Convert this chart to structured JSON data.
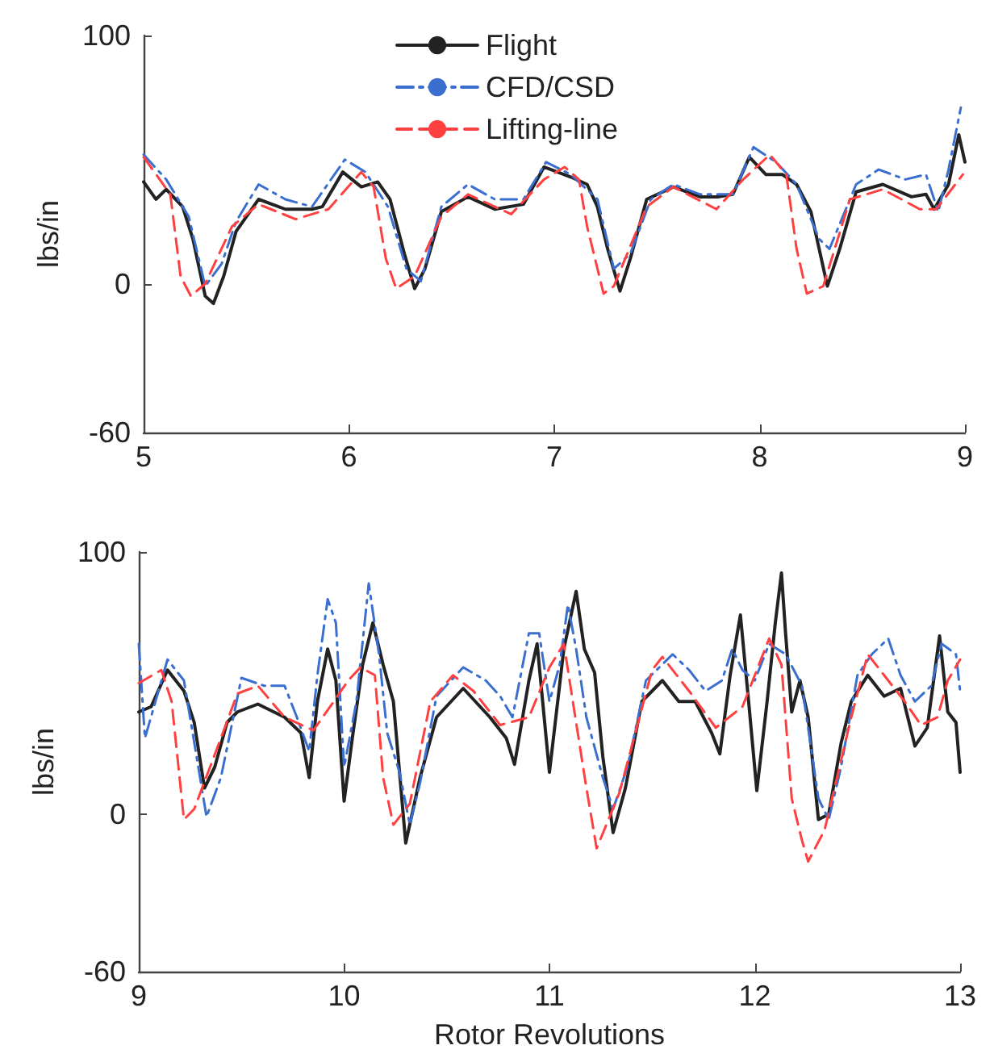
{
  "chart_data": [
    {
      "type": "line",
      "ylabel": "lbs/in",
      "xlim": [
        5,
        9
      ],
      "xticks": [
        5,
        6,
        7,
        8,
        9
      ],
      "ylim": [
        -60,
        100
      ],
      "yticks": [
        -60,
        0,
        100
      ],
      "grid": false,
      "legend": "top",
      "marker": "none",
      "series": [
        {
          "name": "Flight",
          "color": "#222222",
          "line_style": "solid",
          "x": [
            5.0,
            5.06,
            5.11,
            5.19,
            5.24,
            5.3,
            5.34,
            5.39,
            5.45,
            5.56,
            5.69,
            5.82,
            5.87,
            5.97,
            6.06,
            6.14,
            6.2,
            6.27,
            6.32,
            6.37,
            6.45,
            6.58,
            6.71,
            6.85,
            6.95,
            7.08,
            7.16,
            7.21,
            7.26,
            7.32,
            7.37,
            7.45,
            7.58,
            7.71,
            7.8,
            7.87,
            7.95,
            8.03,
            8.11,
            8.18,
            8.25,
            8.33,
            8.39,
            8.47,
            8.6,
            8.74,
            8.81,
            8.85,
            8.92,
            8.97,
            9.0
          ],
          "values": [
            41,
            34,
            38,
            31,
            18,
            -5,
            -8,
            3,
            21,
            34,
            30,
            30,
            31,
            45,
            39,
            41,
            34,
            12,
            -2,
            6,
            29,
            35,
            30,
            32,
            47,
            43,
            40,
            31,
            14,
            -3,
            10,
            34,
            39,
            35,
            35,
            36,
            51,
            44,
            44,
            40,
            29,
            -1,
            14,
            37,
            40,
            35,
            36,
            30,
            40,
            60,
            49
          ]
        },
        {
          "name": "CFD/CSD",
          "color": "#3a6fd0",
          "line_style": "dashdot",
          "x": [
            5.0,
            5.11,
            5.22,
            5.3,
            5.38,
            5.45,
            5.56,
            5.69,
            5.82,
            5.98,
            6.08,
            6.19,
            6.28,
            6.35,
            6.45,
            6.58,
            6.71,
            6.85,
            6.96,
            7.08,
            7.21,
            7.29,
            7.37,
            7.47,
            7.58,
            7.71,
            7.87,
            7.97,
            8.08,
            8.18,
            8.29,
            8.34,
            8.47,
            8.58,
            8.71,
            8.81,
            8.87,
            8.92,
            8.98
          ],
          "values": [
            52,
            42,
            27,
            -1,
            8,
            25,
            40,
            34,
            31,
            50,
            45,
            31,
            6,
            1,
            31,
            40,
            34,
            34,
            49,
            44,
            34,
            6,
            12,
            34,
            40,
            36,
            36,
            55,
            49,
            40,
            18,
            14,
            40,
            46,
            42,
            44,
            29,
            46,
            71
          ]
        },
        {
          "name": "Lifting-line",
          "color": "#ff4040",
          "line_style": "dashed",
          "x": [
            5.0,
            5.07,
            5.13,
            5.18,
            5.23,
            5.3,
            5.43,
            5.56,
            5.74,
            5.9,
            6.06,
            6.12,
            6.18,
            6.23,
            6.32,
            6.45,
            6.58,
            6.79,
            6.95,
            7.05,
            7.12,
            7.16,
            7.24,
            7.29,
            7.45,
            7.58,
            7.79,
            7.92,
            8.05,
            8.13,
            8.18,
            8.23,
            8.31,
            8.44,
            8.6,
            8.78,
            8.86,
            8.99
          ],
          "values": [
            51,
            43,
            36,
            3,
            -5,
            0,
            23,
            32,
            26,
            30,
            45,
            39,
            10,
            -2,
            3,
            27,
            36,
            28,
            42,
            47,
            42,
            23,
            -4,
            -1,
            31,
            39,
            30,
            42,
            52,
            44,
            14,
            -4,
            -1,
            34,
            38,
            30,
            30,
            44
          ]
        }
      ]
    },
    {
      "type": "line",
      "xlabel": "Rotor Revolutions",
      "ylabel": "lbs/in",
      "xlim": [
        9,
        13
      ],
      "xticks": [
        9,
        10,
        11,
        12,
        13
      ],
      "ylim": [
        -60,
        100
      ],
      "yticks": [
        -60,
        0,
        100
      ],
      "grid": false,
      "legend": false,
      "marker": "none",
      "series": [
        {
          "color": "#222222",
          "line_style": "solid",
          "x": [
            9.0,
            9.06,
            9.14,
            9.22,
            9.27,
            9.32,
            9.37,
            9.43,
            9.48,
            9.58,
            9.71,
            9.79,
            9.83,
            9.87,
            9.92,
            9.96,
            10.0,
            10.04,
            10.09,
            10.14,
            10.19,
            10.24,
            10.3,
            10.37,
            10.45,
            10.58,
            10.71,
            10.79,
            10.83,
            10.9,
            10.94,
            11.0,
            11.07,
            11.13,
            11.17,
            11.22,
            11.26,
            11.31,
            11.37,
            11.45,
            11.55,
            11.63,
            11.71,
            11.79,
            11.83,
            11.88,
            11.93,
            11.97,
            12.01,
            12.06,
            12.1,
            12.13,
            12.15,
            12.18,
            12.22,
            12.26,
            12.31,
            12.36,
            12.42,
            12.47,
            12.55,
            12.63,
            12.71,
            12.78,
            12.84,
            12.9,
            12.94,
            12.98,
            13.0
          ],
          "values": [
            39,
            41,
            55,
            47,
            35,
            10,
            18,
            35,
            39,
            42,
            37,
            31,
            14,
            43,
            63,
            51,
            5,
            29,
            57,
            73,
            57,
            43,
            -11,
            14,
            37,
            48,
            37,
            29,
            19,
            51,
            65,
            16,
            63,
            85,
            63,
            54,
            22,
            -7,
            10,
            43,
            51,
            43,
            43,
            31,
            23,
            53,
            76,
            43,
            9,
            43,
            73,
            92,
            69,
            39,
            51,
            37,
            -2,
            0,
            27,
            43,
            53,
            45,
            48,
            26,
            33,
            68,
            39,
            35,
            16
          ]
        },
        {
          "color": "#3a6fd0",
          "line_style": "dashdot",
          "x": [
            9.0,
            9.03,
            9.14,
            9.22,
            9.29,
            9.33,
            9.4,
            9.5,
            9.61,
            9.71,
            9.77,
            9.83,
            9.87,
            9.92,
            9.96,
            10.0,
            10.06,
            10.12,
            10.17,
            10.21,
            10.27,
            10.32,
            10.37,
            10.45,
            10.58,
            10.69,
            10.76,
            10.82,
            10.9,
            10.95,
            11.0,
            11.05,
            11.09,
            11.13,
            11.18,
            11.26,
            11.31,
            11.38,
            11.47,
            11.6,
            11.68,
            11.76,
            11.84,
            11.89,
            11.94,
            12.0,
            12.07,
            12.15,
            12.23,
            12.31,
            12.36,
            12.42,
            12.5,
            12.57,
            12.65,
            12.71,
            12.78,
            12.86,
            12.91,
            12.98,
            13.0
          ],
          "values": [
            65,
            29,
            59,
            51,
            18,
            -1,
            14,
            52,
            49,
            49,
            37,
            24,
            53,
            82,
            73,
            18,
            43,
            88,
            61,
            31,
            16,
            -4,
            12,
            45,
            56,
            51,
            45,
            37,
            69,
            69,
            43,
            57,
            80,
            63,
            37,
            14,
            2,
            18,
            51,
            61,
            55,
            47,
            51,
            63,
            55,
            51,
            65,
            61,
            49,
            6,
            -2,
            18,
            53,
            61,
            67,
            53,
            43,
            49,
            65,
            61,
            47
          ]
        },
        {
          "color": "#ff4040",
          "line_style": "dashed",
          "x": [
            9.0,
            9.11,
            9.16,
            9.22,
            9.27,
            9.4,
            9.48,
            9.58,
            9.71,
            9.85,
            9.95,
            10.02,
            10.08,
            10.15,
            10.19,
            10.24,
            10.32,
            10.42,
            10.53,
            10.63,
            10.76,
            10.9,
            11.0,
            11.07,
            11.18,
            11.23,
            11.34,
            11.5,
            11.55,
            11.68,
            11.81,
            11.94,
            12.02,
            12.07,
            12.13,
            12.18,
            12.23,
            12.26,
            12.34,
            12.47,
            12.55,
            12.63,
            12.73,
            12.81,
            12.89,
            12.94,
            13.0
          ],
          "values": [
            50,
            55,
            43,
            -2,
            2,
            29,
            46,
            49,
            37,
            32,
            43,
            51,
            56,
            53,
            14,
            -4,
            4,
            43,
            53,
            47,
            34,
            37,
            56,
            65,
            10,
            -13,
            8,
            55,
            60,
            47,
            33,
            41,
            57,
            67,
            57,
            6,
            -10,
            -18,
            -6,
            37,
            61,
            53,
            43,
            34,
            37,
            51,
            59
          ]
        }
      ]
    }
  ]
}
